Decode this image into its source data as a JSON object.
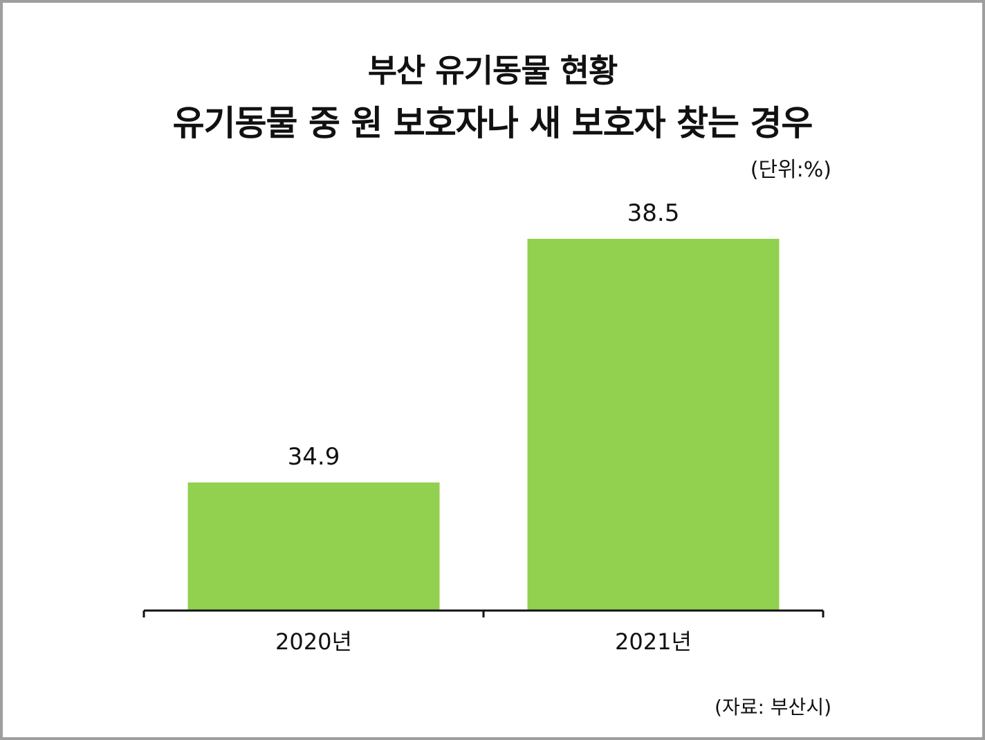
{
  "chart_data": {
    "type": "bar",
    "title": "부산 유기동물 현황",
    "subtitle": "유기동물 중 원 보호자나 새 보호자 찾는 경우",
    "unit_note": "(단위:%)",
    "source_note": "(자료: 부산시)",
    "categories": [
      "2020년",
      "2021년"
    ],
    "values": [
      34.9,
      38.5
    ],
    "value_labels": [
      "34.9",
      "38.5"
    ],
    "ylim": [
      30,
      40
    ],
    "grid": false,
    "bar_color": "#92d050",
    "axis_color": "#111111"
  }
}
